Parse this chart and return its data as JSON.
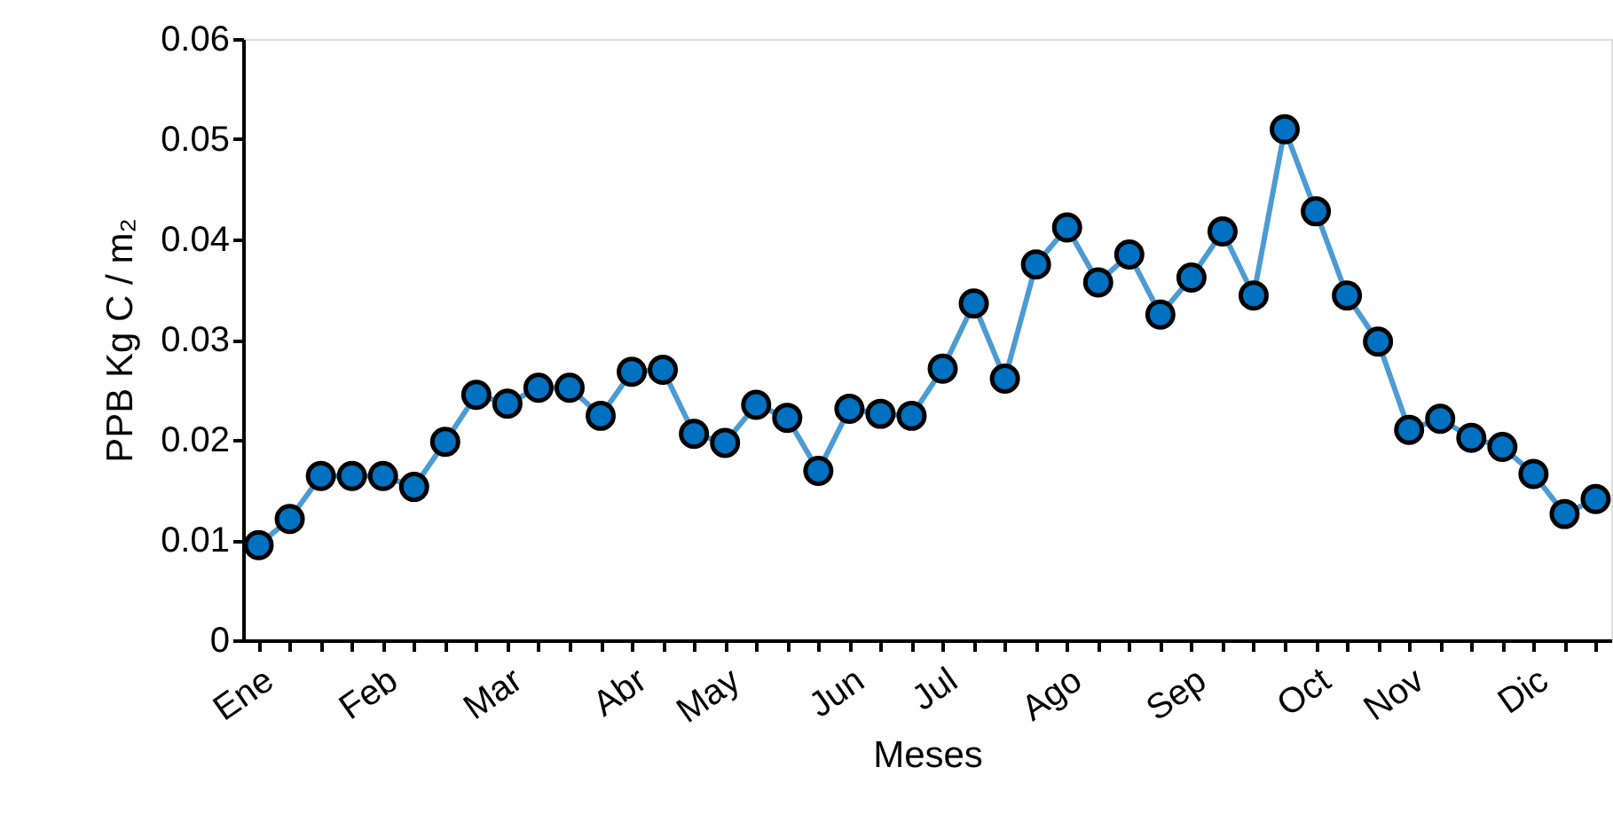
{
  "chart_data": {
    "type": "line",
    "xlabel": "Meses",
    "ylabel": "PPB  Kg C / m₂",
    "categories": [
      "Ene",
      null,
      null,
      null,
      "Feb",
      null,
      null,
      null,
      "Mar",
      null,
      null,
      null,
      "Abr",
      null,
      null,
      "May",
      null,
      null,
      null,
      "Jun",
      null,
      null,
      "Jul",
      null,
      null,
      null,
      "Ago",
      null,
      null,
      null,
      "Sep",
      null,
      null,
      null,
      "Oct",
      null,
      null,
      "Nov",
      null,
      null,
      null,
      "Dic",
      null,
      null
    ],
    "series": [
      {
        "color": "#0070c0",
        "values": [
          0.0095,
          0.0121,
          0.0164,
          0.0164,
          0.0164,
          0.0153,
          0.0198,
          0.0245,
          0.0236,
          0.0252,
          0.0252,
          0.0224,
          0.0268,
          0.027,
          0.0206,
          0.0197,
          0.0235,
          0.0222,
          0.0169,
          0.0231,
          0.0226,
          0.0224,
          0.0271,
          0.0336,
          0.0261,
          0.0375,
          0.0412,
          0.0357,
          0.0385,
          0.0325,
          0.0362,
          0.0408,
          0.0344,
          0.051,
          0.0428,
          0.0344,
          0.0298,
          0.021,
          0.0221,
          0.0202,
          0.0193,
          0.0166,
          0.0126,
          0.0141
        ]
      }
    ],
    "ylim": [
      0,
      0.06
    ],
    "yticks": [
      0,
      0.01,
      0.02,
      0.03,
      0.04,
      0.05,
      0.06
    ],
    "grid": false,
    "marker": "circle",
    "line_style": "solid"
  }
}
